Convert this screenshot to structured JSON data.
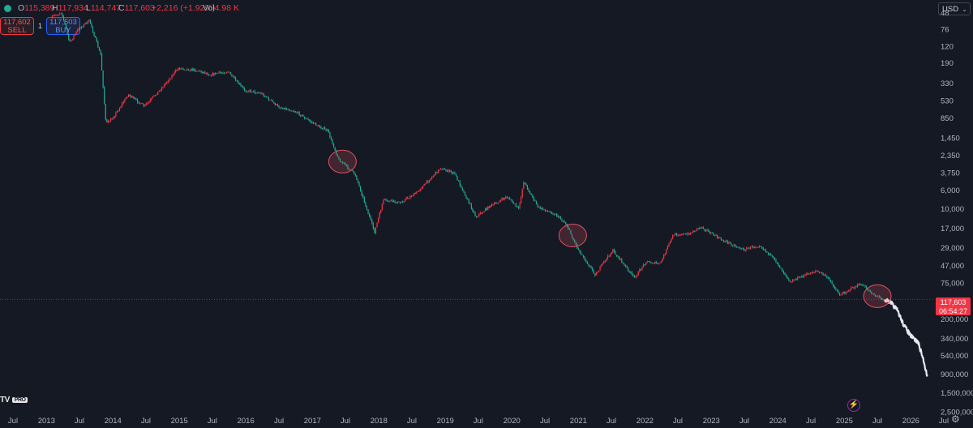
{
  "header": {
    "ohlc": [
      {
        "key": "O",
        "value": "115,389"
      },
      {
        "key": "H",
        "value": "117,934"
      },
      {
        "key": "L",
        "value": "114,747"
      },
      {
        "key": "C",
        "value": "117,603"
      },
      {
        "key": "",
        "value": "+2,216 (+1.92%)"
      },
      {
        "key": "Vol",
        "value": "4.98 K"
      }
    ]
  },
  "trade": {
    "sell_price": "117,602",
    "sell_label": "SELL",
    "quantity": "1",
    "buy_price": "117,603",
    "buy_label": "BUY"
  },
  "currency": {
    "label": "USD",
    "chevron_icon": "chevron-down-icon"
  },
  "price_tag": {
    "price": "117,603",
    "countdown": "06:54:27"
  },
  "logo": {
    "text": "TV",
    "badge": "PRO"
  },
  "icons": {
    "flash": "flash-icon",
    "settings": "settings-icon"
  },
  "colors": {
    "background": "#151924",
    "up": "#22ab94",
    "down": "#f23645",
    "projection": "#e8e8f0",
    "circle": "#e05260"
  },
  "chart_data": {
    "type": "candlestick",
    "y_scale": "log-inverted",
    "y_range": [
      40,
      2800000
    ],
    "y_ticks": [
      "48",
      "76",
      "120",
      "190",
      "330",
      "530",
      "850",
      "1,450",
      "2,350",
      "3,750",
      "6,000",
      "10,000",
      "17,000",
      "29,000",
      "47,000",
      "75,000",
      "200,000",
      "340,000",
      "540,000",
      "900,000",
      "1,500,000",
      "2,500,000"
    ],
    "x_range": [
      "2012-07-01",
      "2026-07-01"
    ],
    "x_ticks": [
      {
        "label": "Jul",
        "t": "2012-07-01"
      },
      {
        "label": "2013",
        "t": "2013-01-01"
      },
      {
        "label": "Jul",
        "t": "2013-07-01"
      },
      {
        "label": "2014",
        "t": "2014-01-01"
      },
      {
        "label": "Jul",
        "t": "2014-07-01"
      },
      {
        "label": "2015",
        "t": "2015-01-01"
      },
      {
        "label": "Jul",
        "t": "2015-07-01"
      },
      {
        "label": "2016",
        "t": "2016-01-01"
      },
      {
        "label": "Jul",
        "t": "2016-07-01"
      },
      {
        "label": "2017",
        "t": "2017-01-01"
      },
      {
        "label": "Jul",
        "t": "2017-07-01"
      },
      {
        "label": "2018",
        "t": "2018-01-01"
      },
      {
        "label": "Jul",
        "t": "2018-07-01"
      },
      {
        "label": "2019",
        "t": "2019-01-01"
      },
      {
        "label": "Jul",
        "t": "2019-07-01"
      },
      {
        "label": "2020",
        "t": "2020-01-01"
      },
      {
        "label": "Jul",
        "t": "2020-07-01"
      },
      {
        "label": "2021",
        "t": "2021-01-01"
      },
      {
        "label": "Jul",
        "t": "2021-07-01"
      },
      {
        "label": "2022",
        "t": "2022-01-01"
      },
      {
        "label": "Jul",
        "t": "2022-07-01"
      },
      {
        "label": "2023",
        "t": "2023-01-01"
      },
      {
        "label": "Jul",
        "t": "2023-07-01"
      },
      {
        "label": "2024",
        "t": "2024-01-01"
      },
      {
        "label": "Jul",
        "t": "2024-07-01"
      },
      {
        "label": "2025",
        "t": "2025-01-01"
      },
      {
        "label": "Jul",
        "t": "2025-07-01"
      },
      {
        "label": "2026",
        "t": "2026-01-01"
      },
      {
        "label": "Jul",
        "t": "2026-07-01"
      }
    ],
    "current_price": 117603,
    "price_path": [
      [
        "2013-02-01",
        55
      ],
      [
        "2013-04-01",
        48
      ],
      [
        "2013-05-15",
        110
      ],
      [
        "2013-07-01",
        76
      ],
      [
        "2013-09-01",
        60
      ],
      [
        "2013-11-01",
        150
      ],
      [
        "2013-12-01",
        1000
      ],
      [
        "2014-01-15",
        800
      ],
      [
        "2014-04-01",
        450
      ],
      [
        "2014-07-01",
        620
      ],
      [
        "2014-10-01",
        380
      ],
      [
        "2015-01-01",
        220
      ],
      [
        "2015-04-01",
        230
      ],
      [
        "2015-07-01",
        260
      ],
      [
        "2015-10-01",
        240
      ],
      [
        "2016-01-01",
        400
      ],
      [
        "2016-04-01",
        430
      ],
      [
        "2016-07-01",
        620
      ],
      [
        "2016-10-01",
        700
      ],
      [
        "2017-01-01",
        950
      ],
      [
        "2017-04-01",
        1200
      ],
      [
        "2017-06-01",
        2600
      ],
      [
        "2017-09-01",
        4000
      ],
      [
        "2017-12-15",
        19000
      ],
      [
        "2018-02-01",
        8000
      ],
      [
        "2018-05-01",
        8500
      ],
      [
        "2018-08-01",
        6500
      ],
      [
        "2018-12-15",
        3300
      ],
      [
        "2019-03-01",
        3900
      ],
      [
        "2019-06-25",
        12500
      ],
      [
        "2019-09-01",
        9600
      ],
      [
        "2019-12-15",
        7200
      ],
      [
        "2020-02-15",
        10200
      ],
      [
        "2020-03-13",
        4800
      ],
      [
        "2020-06-01",
        9700
      ],
      [
        "2020-09-01",
        11500
      ],
      [
        "2020-11-01",
        15000
      ],
      [
        "2021-01-01",
        29000
      ],
      [
        "2021-04-10",
        60000
      ],
      [
        "2021-07-15",
        31000
      ],
      [
        "2021-11-10",
        66000
      ],
      [
        "2022-01-15",
        42000
      ],
      [
        "2022-04-01",
        45000
      ],
      [
        "2022-06-15",
        20000
      ],
      [
        "2022-09-01",
        20000
      ],
      [
        "2022-11-15",
        16500
      ],
      [
        "2023-03-01",
        23000
      ],
      [
        "2023-07-01",
        30500
      ],
      [
        "2023-10-01",
        27000
      ],
      [
        "2024-01-01",
        43000
      ],
      [
        "2024-03-14",
        72000
      ],
      [
        "2024-08-05",
        54000
      ],
      [
        "2024-10-01",
        63000
      ],
      [
        "2024-12-15",
        104000
      ],
      [
        "2025-04-07",
        77000
      ],
      [
        "2025-07-01",
        108000
      ],
      [
        "2025-08-10",
        117603
      ]
    ],
    "projection": [
      [
        "2025-08-10",
        117603
      ],
      [
        "2025-09-15",
        130000
      ],
      [
        "2025-10-20",
        160000
      ],
      [
        "2025-11-20",
        230000
      ],
      [
        "2026-01-01",
        320000
      ],
      [
        "2026-02-10",
        380000
      ],
      [
        "2026-03-10",
        600000
      ],
      [
        "2026-04-01",
        950000
      ]
    ],
    "highlight_circles": [
      "2017-06-15",
      "2020-12-01",
      "2025-07-01"
    ]
  }
}
